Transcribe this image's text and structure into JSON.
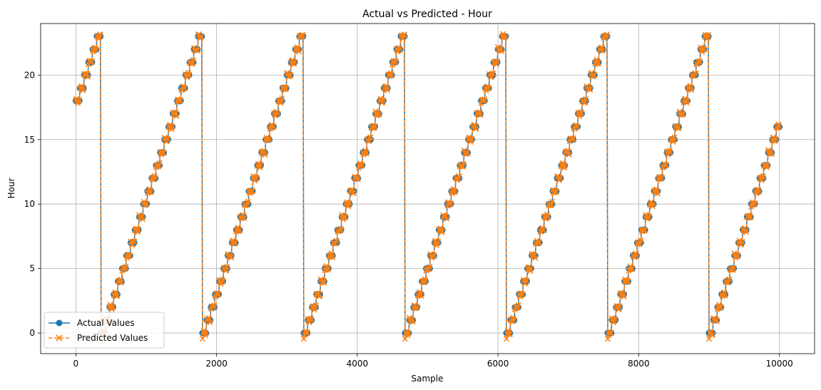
{
  "chart_data": {
    "type": "line",
    "title": "Actual vs Predicted - Hour",
    "xlabel": "Sample",
    "ylabel": "Hour",
    "xlim": [
      -500,
      10500
    ],
    "ylim": [
      -1.6,
      24.0
    ],
    "xticks": [
      0,
      2000,
      4000,
      6000,
      8000,
      10000
    ],
    "xtick_labels": [
      "0",
      "2000",
      "4000",
      "6000",
      "8000",
      "10000"
    ],
    "yticks": [
      0,
      5,
      10,
      15,
      20
    ],
    "ytick_labels": [
      "0",
      "5",
      "10",
      "15",
      "20"
    ],
    "grid": true,
    "legend_position": "lower-left",
    "colors": {
      "actual": "#1f77b4",
      "predicted": "#ff7f0e"
    },
    "pattern": {
      "description_free": true,
      "start_sample": 0,
      "end_sample": 10000,
      "start_hour": 18,
      "samples_per_hour": 60,
      "cycle_length_samples": 1440
    },
    "series": [
      {
        "name": "Actual Values",
        "marker": "circle",
        "linestyle": "solid"
      },
      {
        "name": "Predicted Values",
        "marker": "x",
        "linestyle": "dashed"
      }
    ]
  }
}
